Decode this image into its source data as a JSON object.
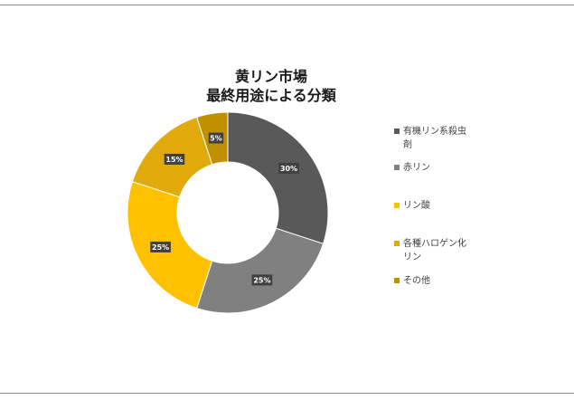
{
  "chart_data": {
    "type": "pie",
    "style": "donut",
    "title_lines": [
      "黄リン市場",
      "最終用途による分類"
    ],
    "categories": [
      "有機リン系殺虫剤",
      "赤リン",
      "リン酸",
      "各種ハロゲン化リン",
      "その他"
    ],
    "values": [
      30,
      25,
      25,
      15,
      5
    ],
    "data_labels": [
      "30%",
      "25%",
      "25%",
      "15%",
      "5%"
    ],
    "colors": [
      "#595959",
      "#808080",
      "#ffc000",
      "#e0aa0a",
      "#c09000"
    ],
    "legend_position": "right"
  },
  "legend_lines": [
    [
      "有機リン系殺虫",
      "剤"
    ],
    [
      "赤リン"
    ],
    [
      "リン酸"
    ],
    [
      "各種ハロゲン化",
      "リン"
    ],
    [
      "その他"
    ]
  ]
}
